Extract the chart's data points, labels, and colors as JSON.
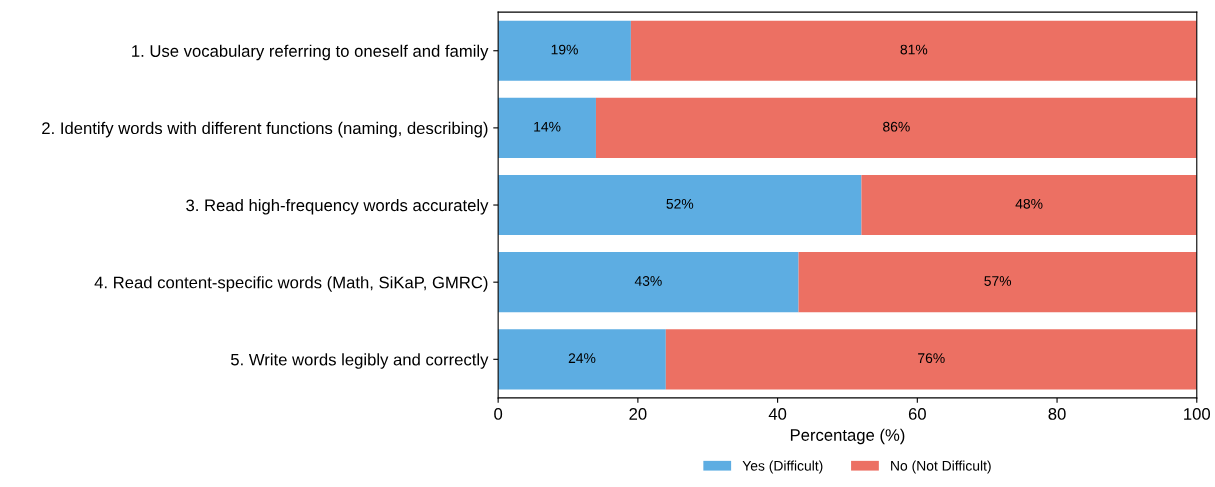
{
  "chart_data": {
    "type": "bar",
    "orientation": "horizontal",
    "stacked": true,
    "categories": [
      "1. Use vocabulary referring to oneself and family",
      "2. Identify words with different functions (naming, describing)",
      "3. Read high-frequency words accurately",
      "4. Read content-specific words (Math, SiKaP, GMRC)",
      "5. Write words legibly and correctly"
    ],
    "series": [
      {
        "name": "Yes (Difficult)",
        "color": "#5dade2",
        "values": [
          19,
          14,
          52,
          43,
          24
        ],
        "value_labels": [
          "19%",
          "14%",
          "52%",
          "43%",
          "24%"
        ]
      },
      {
        "name": "No (Not Difficult)",
        "color": "#ec7063",
        "values": [
          81,
          86,
          48,
          57,
          76
        ],
        "value_labels": [
          "81%",
          "86%",
          "48%",
          "57%",
          "76%"
        ]
      }
    ],
    "xlabel": "Percentage (%)",
    "xlim": [
      0,
      100
    ],
    "xticks": [
      0,
      20,
      40,
      60,
      80,
      100
    ],
    "grid": false,
    "legend": "bottom"
  }
}
